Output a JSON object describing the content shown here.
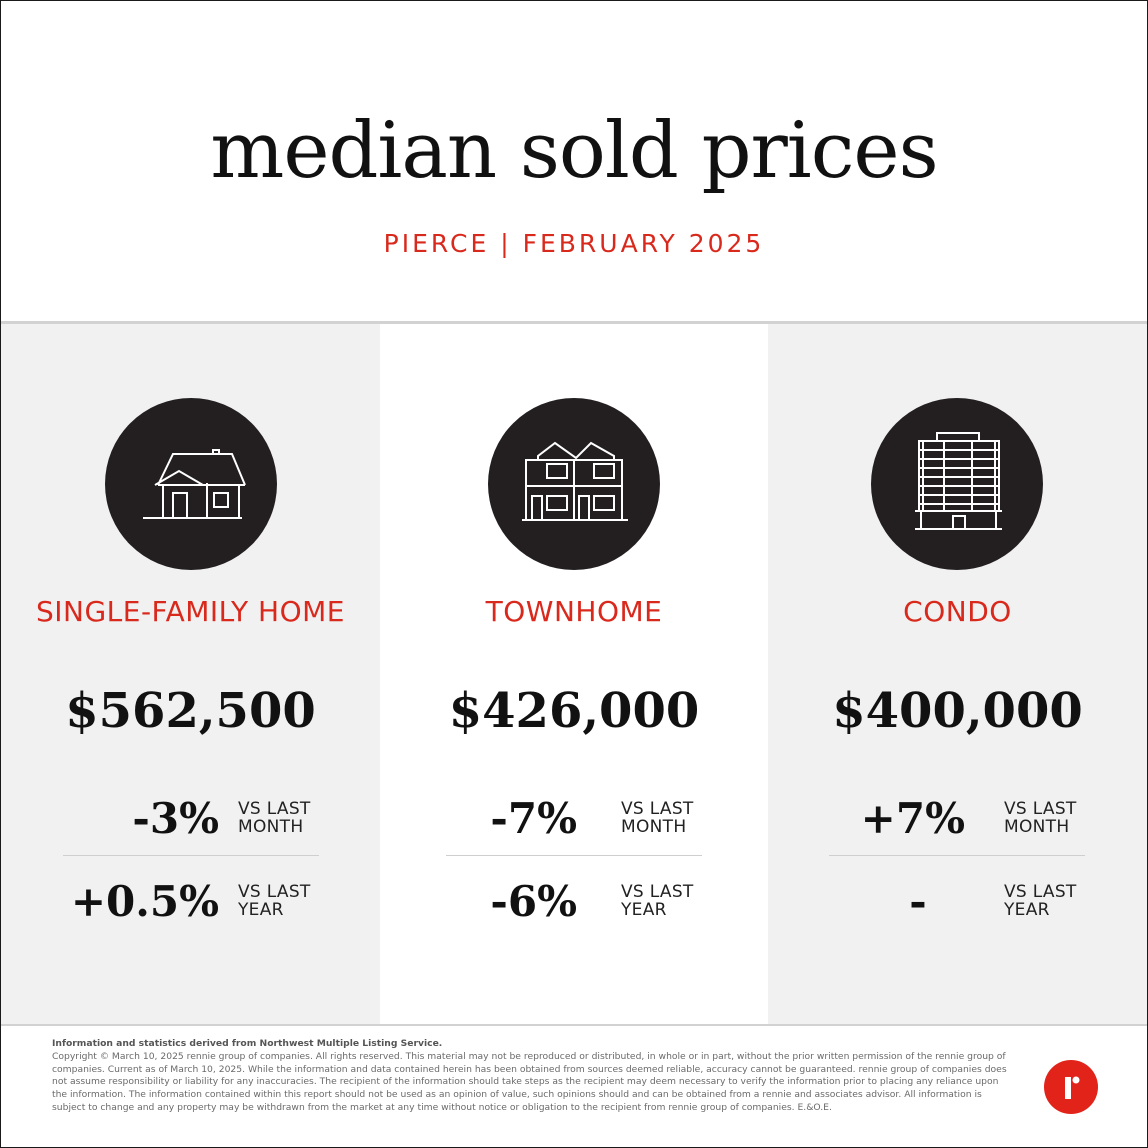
{
  "header": {
    "title": "median sold prices",
    "subtitle": "PIERCE | FEBRUARY 2025"
  },
  "colors": {
    "accent": "#d9291c",
    "icon_circle": "#231f20",
    "panel_shade": "#f1f1f1",
    "logo": "#e2231a"
  },
  "categories": [
    {
      "icon": "house-icon",
      "label": "SINGLE-FAMILY HOME",
      "price": "$562,500",
      "month_change": "-3%",
      "year_change": "+0.5%"
    },
    {
      "icon": "townhome-icon",
      "label": "TOWNHOME",
      "price": "$426,000",
      "month_change": "-7%",
      "year_change": "-6%"
    },
    {
      "icon": "condo-building-icon",
      "label": "CONDO",
      "price": "$400,000",
      "month_change": "+7%",
      "year_change": "-"
    }
  ],
  "labels": {
    "vs_last": "VS LAST",
    "month": "MONTH",
    "year": "YEAR"
  },
  "footer": {
    "source": "Information and statistics derived from Northwest Multiple Listing Service.",
    "disclaimer": "Copyright © March 10, 2025 rennie group of companies. All rights reserved. This material may not be reproduced or distributed, in whole or in part, without the prior written permission of the rennie group of companies. Current as of March 10, 2025. While the information and data contained herein has been obtained from sources deemed reliable, accuracy cannot be guaranteed. rennie group of companies does not assume responsibility or liability for any inaccuracies. The recipient of the information should take steps as the recipient may deem necessary to verify the information prior to placing any reliance upon the information. The information contained within this report should not be used as an opinion of value, such opinions should and can be obtained from a rennie and associates advisor. All information is subject to change and any property may be withdrawn from the market at any time without notice or obligation to the recipient from rennie group of companies. E.&O.E.",
    "logo_icon": "rennie-logo-icon"
  }
}
